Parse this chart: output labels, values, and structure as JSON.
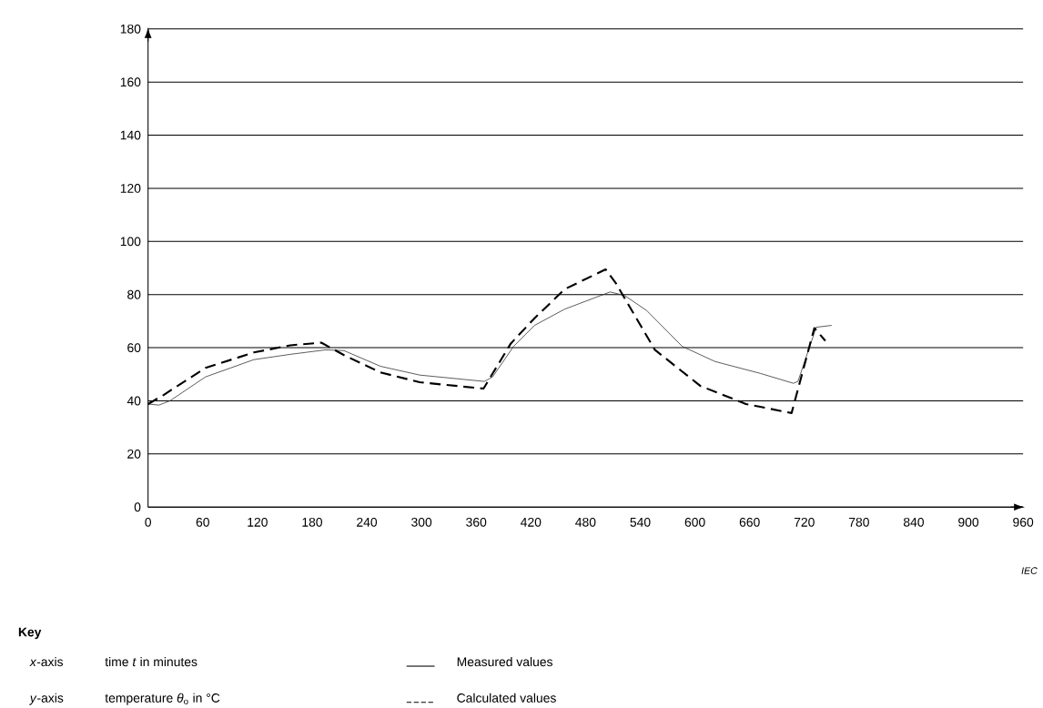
{
  "chart_data": {
    "type": "line",
    "xlim": [
      0,
      960
    ],
    "ylim": [
      0,
      180
    ],
    "xticks": [
      0,
      60,
      120,
      180,
      240,
      300,
      360,
      420,
      480,
      540,
      600,
      660,
      720,
      780,
      840,
      900,
      960
    ],
    "yticks": [
      0,
      20,
      40,
      60,
      80,
      100,
      120,
      140,
      160,
      180
    ],
    "grid": "y",
    "legend": "bottom",
    "marker": "none",
    "annotations": [
      "Key",
      "*x*-axis",
      "time *t* in minutes",
      "*y*-axis",
      "temperature *θ*$_{o}$ in °C",
      "IEC"
    ],
    "series": [
      {
        "name": "Measured values",
        "color": "#333333",
        "line_style": "solid",
        "x": [
          0,
          12,
          24,
          63,
          116,
          156,
          195,
          215,
          255,
          298,
          369,
          378,
          401,
          424,
          457,
          507,
          523,
          547,
          586,
          622,
          672,
          708,
          713,
          733,
          750
        ],
        "values": [
          38.8,
          38.4,
          40,
          49,
          55.5,
          57.5,
          59.2,
          58.9,
          53,
          49.7,
          47.3,
          49,
          60.5,
          68.4,
          74.5,
          81,
          79.6,
          74,
          60.5,
          54.8,
          50.3,
          46.6,
          47.3,
          67.7,
          68.4
        ]
      },
      {
        "name": "Calculated values",
        "color": "#000000",
        "line_style": "dashed",
        "x": [
          0,
          17,
          63,
          116,
          156,
          190,
          215,
          255,
          298,
          368,
          398,
          424,
          457,
          502,
          513,
          556,
          606,
          656,
          706,
          731,
          743
        ],
        "values": [
          38.8,
          42.2,
          52.4,
          58.2,
          60.9,
          61.9,
          57.2,
          50.7,
          47,
          44.6,
          61.6,
          71.1,
          82,
          89.5,
          84.4,
          59.2,
          45.6,
          38.8,
          35.4,
          67.4,
          62.6
        ]
      }
    ]
  }
}
